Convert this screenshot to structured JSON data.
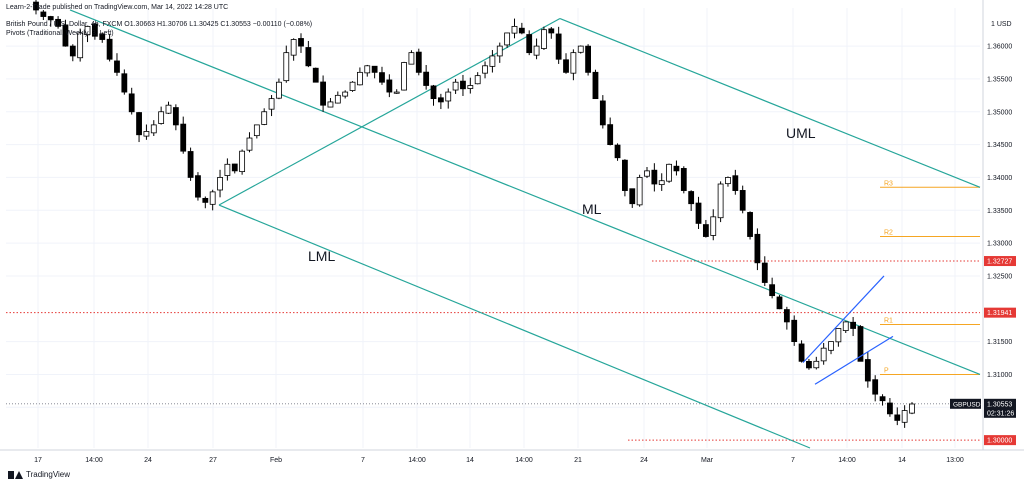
{
  "header": {
    "line1": "Learn-2-Trade published on TradingView.com, Mar 14, 2022 14:28 UTC",
    "line2": "British Pound / U.S. Dollar, 4h, FXCM  O1.30663 H1.30706 L1.30425 C1.30553 −0.00110 (−0.08%)",
    "line3": "Pivots (Traditional, Weekly, 3, Left)"
  },
  "branding": "TradingView",
  "currency_label": "1 USD",
  "price_axis": [
    "1.36000",
    "1.35500",
    "1.35000",
    "1.34500",
    "1.34000",
    "1.33500",
    "1.33000",
    "1.32500",
    "1.31500",
    "1.31000",
    "1.30500"
  ],
  "time_axis": [
    "17",
    "14:00",
    "24",
    "27",
    "Feb",
    "7",
    "14:00",
    "14",
    "14:00",
    "21",
    "24",
    "Mar",
    "7",
    "14:00",
    "14",
    "13:00"
  ],
  "level_badges": [
    "1.32727",
    "1.31941",
    "1.30000"
  ],
  "symbol_badge": {
    "symbol": "GBPUSD",
    "price": "1.30553",
    "countdown": "02:31:26"
  },
  "pivot_labels": [
    "R3",
    "R2",
    "R1",
    "P"
  ],
  "channel_labels": {
    "upper": "UML",
    "median": "ML",
    "lower": "LML"
  },
  "colors": {
    "up": "#ffffff",
    "down": "#000000",
    "pitchfork": "#26a69a",
    "channel": "#2962ff",
    "pivot": "#f5a623",
    "level": "#e53935",
    "axis_text": "#131722"
  },
  "chart_data": {
    "type": "candlestick",
    "symbol": "GBPUSD",
    "timeframe": "4h",
    "ylim": [
      1.2988,
      1.3658
    ],
    "last_price": 1.30553,
    "horizontal_levels": [
      1.32727,
      1.31941,
      1.3
    ],
    "pivots": {
      "R3": 1.3385,
      "R2": 1.331,
      "R1": 1.3176,
      "P": 1.31
    },
    "pitchfork": {
      "pivot_a": [
        "Jan 27",
        1.3358
      ],
      "pivot_b": [
        "Feb 18",
        1.3642
      ],
      "ml_end": [
        "Mar 15",
        1.31
      ],
      "uml_end": [
        "Mar 15",
        1.3385
      ],
      "lml_end": [
        "Mar 7",
        1.2988
      ]
    },
    "rising_channel": {
      "lower": [
        [
          1.3085
        ],
        [
          1.3158
        ]
      ],
      "upper": [
        [
          1.3115
        ],
        [
          1.325
        ]
      ]
    },
    "price_path": [
      1.3655,
      1.3645,
      1.364,
      1.363,
      1.36,
      1.3585,
      1.362,
      1.363,
      1.3615,
      1.361,
      1.358,
      1.356,
      1.353,
      1.35,
      1.3465,
      1.347,
      1.348,
      1.35,
      1.351,
      1.348,
      1.344,
      1.34,
      1.337,
      1.3362,
      1.3378,
      1.34,
      1.342,
      1.341,
      1.344,
      1.346,
      1.348,
      1.35,
      1.352,
      1.3545,
      1.359,
      1.361,
      1.36,
      1.357,
      1.3545,
      1.351,
      1.3515,
      1.3525,
      1.353,
      1.3545,
      1.356,
      1.357,
      1.356,
      1.3545,
      1.353,
      1.353,
      1.3575,
      1.359,
      1.356,
      1.354,
      1.352,
      1.3515,
      1.353,
      1.3545,
      1.3535,
      1.354,
      1.3555,
      1.357,
      1.3585,
      1.36,
      1.362,
      1.363,
      1.362,
      1.359,
      1.36,
      1.3625,
      1.362,
      1.358,
      1.356,
      1.359,
      1.36,
      1.356,
      1.352,
      1.348,
      1.345,
      1.343,
      1.338,
      1.336,
      1.34,
      1.341,
      1.339,
      1.3395,
      1.342,
      1.341,
      1.338,
      1.336,
      1.333,
      1.331,
      1.334,
      1.339,
      1.34,
      1.338,
      1.335,
      1.331,
      1.327,
      1.324,
      1.322,
      1.32,
      1.318,
      1.315,
      1.312,
      1.311,
      1.312,
      1.314,
      1.315,
      1.317,
      1.318,
      1.317,
      1.312,
      1.309,
      1.307,
      1.306,
      1.304,
      1.303,
      1.3045,
      1.3055
    ]
  }
}
